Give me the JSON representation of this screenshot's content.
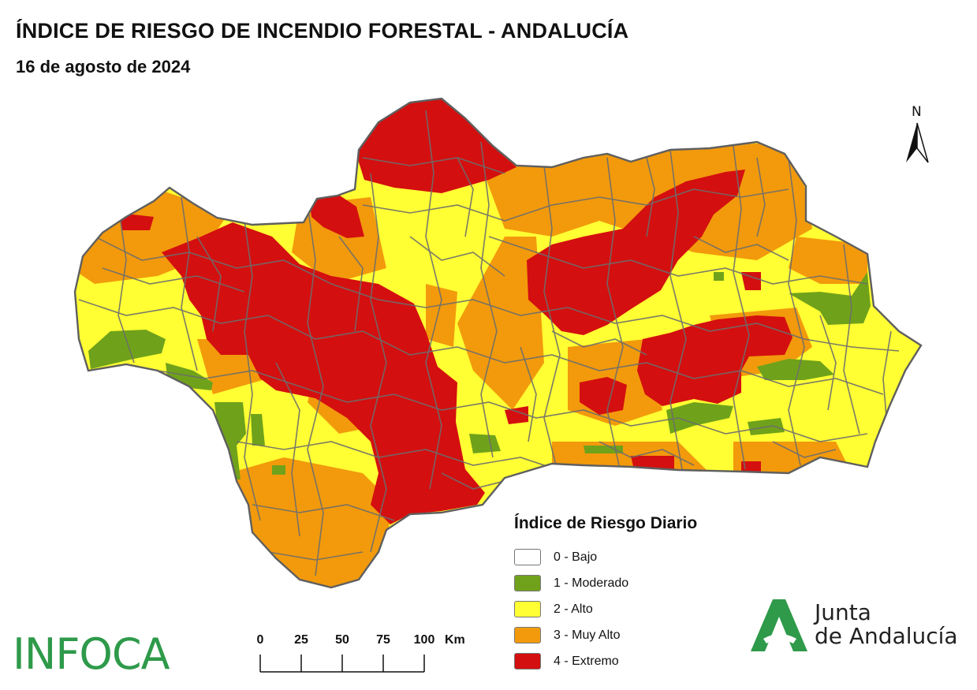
{
  "header": {
    "title": "ÍNDICE DE RIESGO DE INCENDIO FORESTAL - ANDALUCÍA",
    "date": "16 de agosto de 2024"
  },
  "north_arrow": {
    "label": "N"
  },
  "legend": {
    "title": "Índice de Riesgo Diario",
    "items": [
      {
        "label": "0 - Bajo",
        "color": "#ffffff"
      },
      {
        "label": "1 - Moderado",
        "color": "#6fa21a"
      },
      {
        "label": "2 - Alto",
        "color": "#ffff33"
      },
      {
        "label": "3 - Muy Alto",
        "color": "#f29a0c"
      },
      {
        "label": "4 - Extremo",
        "color": "#d40f0f"
      }
    ]
  },
  "scale_bar": {
    "ticks": [
      "0",
      "25",
      "50",
      "75",
      "100"
    ],
    "unit": "Km"
  },
  "logos": {
    "infoca": "INFOCA",
    "junta_line1": "Junta",
    "junta_line2": "de Andalucía",
    "junta_color": "#2e9a4a"
  },
  "map": {
    "colors": {
      "moderado": "#6fa21a",
      "alto": "#ffff33",
      "muy_alto": "#f29a0c",
      "extremo": "#d40f0f",
      "borders": "#6d6d6d"
    }
  }
}
